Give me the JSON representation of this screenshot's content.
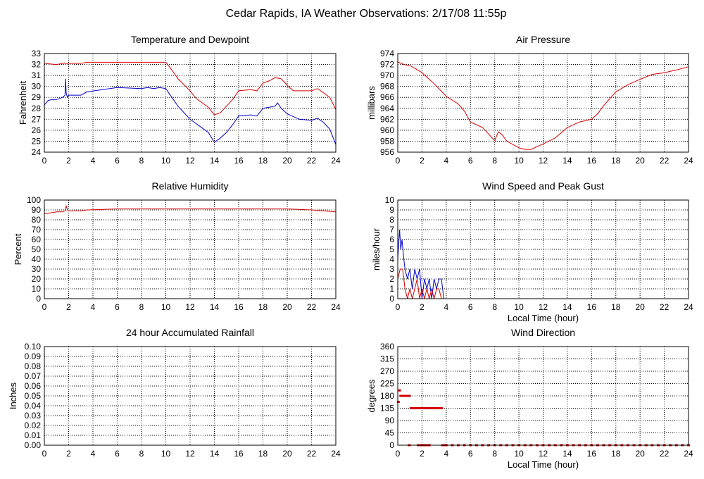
{
  "main_title": "Cedar Rapids, IA Weather Observations: 2/17/08 11:55p",
  "colors": {
    "red": "#d40000",
    "blue": "#0000c8"
  },
  "chart_data": [
    {
      "id": "temp",
      "type": "line",
      "title": "Temperature and Dewpoint",
      "xlabel": "",
      "ylabel": "Fahrenheit",
      "xlim": [
        0,
        24
      ],
      "ylim": [
        24,
        33
      ],
      "xticks": [
        "0",
        "2",
        "4",
        "6",
        "8",
        "10",
        "12",
        "14",
        "16",
        "18",
        "20",
        "22",
        "24"
      ],
      "yticks": [
        "33",
        "32",
        "31",
        "30",
        "29",
        "28",
        "27",
        "26",
        "25",
        "24"
      ],
      "grid": true,
      "series": [
        {
          "color": "red",
          "x": [
            0,
            1,
            1.5,
            3,
            3.5,
            6,
            8,
            9,
            10,
            10.5,
            11,
            12,
            12.5,
            13,
            13.5,
            14,
            14.5,
            15,
            15.5,
            16,
            17,
            17.5,
            18,
            18.5,
            19,
            19.5,
            20,
            20.5,
            21,
            22,
            22.5,
            23,
            23.5,
            24
          ],
          "y": [
            32.1,
            32.0,
            32.1,
            32.1,
            32.2,
            32.2,
            32.2,
            32.2,
            32.2,
            31.5,
            30.7,
            29.6,
            28.9,
            28.5,
            28.1,
            27.4,
            27.6,
            28.2,
            28.8,
            29.6,
            29.7,
            29.6,
            30.3,
            30.5,
            30.8,
            30.7,
            30.1,
            29.6,
            29.6,
            29.6,
            29.8,
            29.4,
            29.0,
            27.9
          ]
        },
        {
          "color": "blue",
          "x": [
            0,
            0.3,
            0.6,
            1,
            1.5,
            1.7,
            1.75,
            1.8,
            1.9,
            2,
            3,
            3.5,
            6,
            8,
            8.5,
            9,
            9.5,
            10,
            10.5,
            11,
            12,
            13,
            13.5,
            14,
            14.5,
            15,
            15.5,
            16,
            17,
            17.5,
            18,
            19,
            19.2,
            19.5,
            20,
            21,
            22,
            22.5,
            23,
            23.5,
            24
          ],
          "y": [
            28.3,
            28.7,
            28.8,
            28.8,
            29.0,
            29.2,
            30.7,
            29.4,
            29.0,
            29.2,
            29.2,
            29.5,
            29.9,
            29.8,
            29.9,
            29.8,
            29.9,
            29.8,
            29.0,
            28.2,
            27.0,
            26.2,
            25.8,
            24.9,
            25.3,
            25.8,
            26.5,
            27.3,
            27.4,
            27.3,
            28.0,
            28.2,
            28.5,
            28.0,
            27.5,
            27.0,
            26.9,
            27.1,
            26.7,
            26.1,
            24.7
          ]
        }
      ]
    },
    {
      "id": "pres",
      "type": "line",
      "title": "Air Pressure",
      "xlabel": "",
      "ylabel": "millibars",
      "xlim": [
        0,
        24
      ],
      "ylim": [
        956,
        974
      ],
      "xticks": [
        "0",
        "2",
        "4",
        "6",
        "8",
        "10",
        "12",
        "14",
        "16",
        "18",
        "20",
        "22",
        "24"
      ],
      "yticks": [
        "974",
        "972",
        "970",
        "968",
        "966",
        "964",
        "962",
        "960",
        "958",
        "956"
      ],
      "grid": true,
      "series": [
        {
          "color": "red",
          "x": [
            0,
            0.5,
            1,
            1.5,
            2,
            3,
            4,
            5,
            5.5,
            6,
            7,
            7.5,
            8,
            8.3,
            8.6,
            9,
            10,
            10.5,
            11,
            12,
            13,
            14,
            15,
            16,
            16.5,
            17,
            18,
            19,
            20,
            21,
            22,
            23,
            24
          ],
          "y": [
            972.5,
            972.0,
            971.8,
            971.2,
            970.5,
            968.5,
            966.2,
            964.8,
            963.5,
            961.5,
            960.5,
            959.3,
            958.1,
            959.7,
            959.2,
            958.0,
            956.8,
            956.5,
            956.5,
            957.5,
            958.6,
            960.5,
            961.5,
            962.0,
            963.0,
            964.5,
            967.0,
            968.3,
            969.3,
            970.2,
            970.5,
            971.0,
            971.6
          ]
        }
      ]
    },
    {
      "id": "rh",
      "type": "line",
      "title": "Relative Humidity",
      "xlabel": "",
      "ylabel": "Percent",
      "xlim": [
        0,
        24
      ],
      "ylim": [
        0,
        100
      ],
      "xticks": [
        "0",
        "2",
        "4",
        "6",
        "8",
        "10",
        "12",
        "14",
        "16",
        "18",
        "20",
        "22",
        "24"
      ],
      "yticks": [
        "100",
        "90",
        "80",
        "70",
        "60",
        "50",
        "40",
        "30",
        "20",
        "10",
        "0"
      ],
      "grid": true,
      "series": [
        {
          "color": "red",
          "x": [
            0,
            0.5,
            1,
            1.5,
            1.7,
            1.8,
            1.9,
            2,
            3,
            3.5,
            6,
            10,
            14,
            18,
            20,
            22,
            23,
            24
          ],
          "y": [
            86,
            87,
            88,
            88,
            89,
            94,
            90,
            89,
            89,
            90,
            91,
            91,
            91,
            91,
            91,
            90,
            89,
            88
          ]
        }
      ]
    },
    {
      "id": "wind",
      "type": "line",
      "title": "Wind Speed and Peak Gust",
      "xlabel": "Local Time (hour)",
      "ylabel": "miles/hour",
      "xlim": [
        0,
        24
      ],
      "ylim": [
        0,
        10
      ],
      "xticks": [
        "0",
        "2",
        "4",
        "6",
        "8",
        "10",
        "12",
        "14",
        "16",
        "18",
        "20",
        "22",
        "24"
      ],
      "yticks": [
        "10",
        "9",
        "8",
        "7",
        "6",
        "5",
        "4",
        "3",
        "2",
        "1",
        "0"
      ],
      "grid": true,
      "series": [
        {
          "color": "blue",
          "x": [
            0,
            0.15,
            0.25,
            0.35,
            0.5,
            0.6,
            0.8,
            1,
            1.2,
            1.4,
            1.6,
            1.8,
            2,
            2.2,
            2.4,
            2.6,
            2.8,
            3,
            3.2,
            3.4,
            3.6,
            3.8,
            24
          ],
          "y": [
            4,
            7,
            5,
            6,
            4,
            3,
            2,
            3,
            1,
            3,
            2,
            3,
            0,
            2,
            1,
            2,
            0,
            2,
            1,
            2,
            2,
            0,
            0
          ]
        },
        {
          "color": "red",
          "x": [
            0,
            0.2,
            0.4,
            0.6,
            0.8,
            1,
            1.2,
            1.4,
            1.6,
            1.8,
            2,
            2.2,
            2.4,
            2.6,
            2.8,
            3,
            3.2,
            3.4,
            3.6,
            3.8,
            24
          ],
          "y": [
            2,
            3,
            3,
            1,
            0,
            1,
            0,
            1,
            2,
            0,
            1,
            0,
            1,
            0,
            1,
            0,
            1,
            1,
            0,
            0,
            0
          ]
        }
      ]
    },
    {
      "id": "rain",
      "type": "line",
      "title": "24 hour Accumulated Rainfall",
      "xlabel": "",
      "ylabel": "Inches",
      "xlim": [
        0,
        24
      ],
      "ylim": [
        0,
        0.1
      ],
      "xticks": [
        "0",
        "2",
        "4",
        "6",
        "8",
        "10",
        "12",
        "14",
        "16",
        "18",
        "20",
        "22",
        "24"
      ],
      "yticks": [
        "0.10",
        "0.09",
        "0.08",
        "0.07",
        "0.06",
        "0.05",
        "0.04",
        "0.03",
        "0.02",
        "0.01",
        "0.00"
      ],
      "grid": true,
      "series": [
        {
          "color": "red",
          "x": [
            0,
            24
          ],
          "y": [
            0,
            0
          ]
        }
      ]
    },
    {
      "id": "wdir",
      "type": "scatter",
      "title": "Wind Direction",
      "xlabel": "Local Time (hour)",
      "ylabel": "degrees",
      "xlim": [
        0,
        24
      ],
      "ylim": [
        0,
        360
      ],
      "xticks": [
        "0",
        "2",
        "4",
        "6",
        "8",
        "10",
        "12",
        "14",
        "16",
        "18",
        "20",
        "22",
        "24"
      ],
      "yticks": [
        "360",
        "315",
        "270",
        "225",
        "180",
        "135",
        "90",
        "45",
        "0"
      ],
      "grid": true,
      "series": [
        {
          "color": "red",
          "x": [
            0.05,
            0.15,
            0.25,
            0.35,
            0.45,
            0.55,
            0.65,
            0.75,
            0.85,
            0.95,
            1.1,
            1.2,
            1.3,
            1.4,
            1.5,
            1.6,
            1.7,
            1.8,
            1.9,
            2.0,
            2.1,
            2.2,
            2.3,
            2.4,
            2.5,
            2.6,
            2.7,
            2.8,
            2.9,
            3.0,
            3.1,
            3.2,
            3.3,
            3.4,
            3.5,
            3.6,
            0.95,
            1.7,
            1.8,
            1.9,
            2.0,
            2.1,
            2.2,
            2.3,
            2.4,
            2.5,
            2.6,
            3.7,
            3.8,
            3.9,
            4.0,
            4.5,
            5,
            5.5,
            6,
            6.5,
            7,
            7.5,
            8,
            8.5,
            9,
            9.5,
            10,
            10.5,
            11,
            11.5,
            12,
            12.5,
            13,
            13.5,
            14,
            14.5,
            15,
            15.5,
            16,
            16.5,
            17,
            17.5,
            18,
            18.5,
            19,
            19.5,
            20,
            20.5,
            21,
            21.5,
            22,
            22.5,
            23,
            23.5,
            24
          ],
          "y": [
            158,
            200,
            180,
            180,
            180,
            180,
            180,
            180,
            180,
            180,
            135,
            135,
            135,
            135,
            135,
            135,
            135,
            135,
            135,
            135,
            135,
            135,
            135,
            135,
            135,
            135,
            135,
            135,
            135,
            135,
            135,
            135,
            135,
            135,
            135,
            135,
            0,
            0,
            0,
            0,
            0,
            0,
            0,
            0,
            0,
            0,
            0,
            0,
            0,
            0,
            0,
            0,
            0,
            0,
            0,
            0,
            0,
            0,
            0,
            0,
            0,
            0,
            0,
            0,
            0,
            0,
            0,
            0,
            0,
            0,
            0,
            0,
            0,
            0,
            0,
            0,
            0,
            0,
            0,
            0,
            0,
            0,
            0,
            0,
            0,
            0,
            0,
            0,
            0,
            0,
            0
          ]
        }
      ]
    }
  ]
}
